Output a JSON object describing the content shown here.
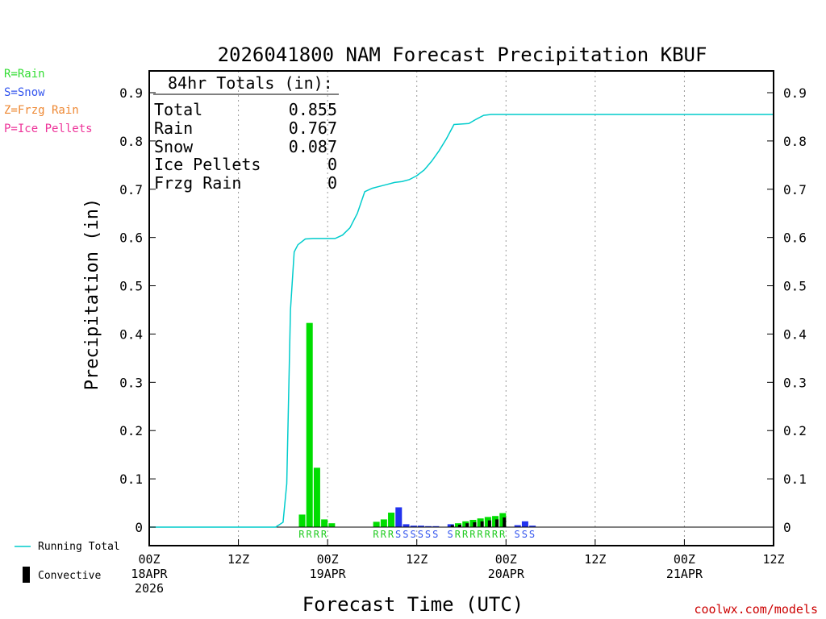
{
  "title": "2026041800 NAM Forecast Precipitation KBUF",
  "legend_types": [
    {
      "label": "R=Rain",
      "color": "#33dd33"
    },
    {
      "label": "S=Snow",
      "color": "#3355ee"
    },
    {
      "label": "Z=Frzg Rain",
      "color": "#ee8833"
    },
    {
      "label": "P=Ice Pellets",
      "color": "#ee3399"
    }
  ],
  "legend_lines": {
    "running_total": "Running Total",
    "convective": "Convective"
  },
  "totals_box": {
    "header": "84hr Totals (in):",
    "rows": [
      {
        "label": "Total",
        "value": "0.855"
      },
      {
        "label": "Rain",
        "value": "0.767"
      },
      {
        "label": "Snow",
        "value": "0.087"
      },
      {
        "label": "Ice Pellets",
        "value": "0"
      },
      {
        "label": "Frzg Rain",
        "value": "0"
      }
    ]
  },
  "credit": "coolwx.com/models",
  "colors": {
    "rain": "#00dd00",
    "snow": "#2233ee",
    "running_total": "#00cccc",
    "convective": "#000000",
    "rain_text": "#22cc22",
    "snow_text": "#3355ee",
    "credit": "#cc0000"
  },
  "chart_data": {
    "type": "bar",
    "ylabel": "Precipitation (in)",
    "xlabel": "Forecast Time (UTC)",
    "ylim": [
      0,
      0.9
    ],
    "yticks": [
      0,
      0.1,
      0.2,
      0.3,
      0.4,
      0.5,
      0.6,
      0.7,
      0.8,
      0.9
    ],
    "xlim_hours": [
      0,
      84
    ],
    "xticks": [
      {
        "hour": 0,
        "label": [
          "00Z",
          "18APR",
          "2026"
        ]
      },
      {
        "hour": 12,
        "label": [
          "12Z"
        ]
      },
      {
        "hour": 24,
        "label": [
          "00Z",
          "19APR"
        ]
      },
      {
        "hour": 36,
        "label": [
          "12Z"
        ]
      },
      {
        "hour": 48,
        "label": [
          "00Z",
          "20APR"
        ]
      },
      {
        "hour": 60,
        "label": [
          "12Z"
        ]
      },
      {
        "hour": 72,
        "label": [
          "00Z",
          "21APR"
        ]
      },
      {
        "hour": 84,
        "label": [
          "12Z"
        ]
      }
    ],
    "grid_x": "dotted",
    "bars": [
      {
        "hour": 21,
        "value": 0.026,
        "type": "R",
        "convective": 0
      },
      {
        "hour": 22,
        "value": 0.423,
        "type": "R",
        "convective": 0
      },
      {
        "hour": 23,
        "value": 0.123,
        "type": "R",
        "convective": 0
      },
      {
        "hour": 24,
        "value": 0.016,
        "type": "R",
        "convective": 0
      },
      {
        "hour": 25,
        "value": 0.008,
        "type": "R",
        "convective": 0
      },
      {
        "hour": 31,
        "value": 0.011,
        "type": "R",
        "convective": 0
      },
      {
        "hour": 32,
        "value": 0.016,
        "type": "R",
        "convective": 0
      },
      {
        "hour": 33,
        "value": 0.03,
        "type": "R",
        "convective": 0
      },
      {
        "hour": 34,
        "value": 0.041,
        "type": "S",
        "convective": 0
      },
      {
        "hour": 35,
        "value": 0.006,
        "type": "S",
        "convective": 0
      },
      {
        "hour": 36,
        "value": 0.003,
        "type": "S",
        "convective": 0
      },
      {
        "hour": 37,
        "value": 0.003,
        "type": "S",
        "convective": 0
      },
      {
        "hour": 38,
        "value": 0.002,
        "type": "S",
        "convective": 0
      },
      {
        "hour": 39,
        "value": 0.002,
        "type": "S",
        "convective": 0
      },
      {
        "hour": 41,
        "value": 0.006,
        "type": "S",
        "convective": 0.004
      },
      {
        "hour": 42,
        "value": 0.008,
        "type": "R",
        "convective": 0.005
      },
      {
        "hour": 43,
        "value": 0.012,
        "type": "R",
        "convective": 0.008
      },
      {
        "hour": 44,
        "value": 0.015,
        "type": "R",
        "convective": 0.01
      },
      {
        "hour": 45,
        "value": 0.018,
        "type": "R",
        "convective": 0.012
      },
      {
        "hour": 46,
        "value": 0.021,
        "type": "R",
        "convective": 0.014
      },
      {
        "hour": 47,
        "value": 0.023,
        "type": "R",
        "convective": 0.016
      },
      {
        "hour": 48,
        "value": 0.029,
        "type": "R",
        "convective": 0.02
      },
      {
        "hour": 50,
        "value": 0.004,
        "type": "S",
        "convective": 0
      },
      {
        "hour": 51,
        "value": 0.012,
        "type": "S",
        "convective": 0
      },
      {
        "hour": 52,
        "value": 0.003,
        "type": "S",
        "convective": 0
      }
    ],
    "type_labels": [
      {
        "hour": 21,
        "text": "R",
        "type": "R"
      },
      {
        "hour": 22,
        "text": "R",
        "type": "R"
      },
      {
        "hour": 23,
        "text": "R",
        "type": "R"
      },
      {
        "hour": 24,
        "text": "R",
        "type": "R"
      },
      {
        "hour": 31,
        "text": "R",
        "type": "R"
      },
      {
        "hour": 32,
        "text": "R",
        "type": "R"
      },
      {
        "hour": 33,
        "text": "R",
        "type": "R"
      },
      {
        "hour": 34,
        "text": "S",
        "type": "S"
      },
      {
        "hour": 35,
        "text": "S",
        "type": "S"
      },
      {
        "hour": 36,
        "text": "S",
        "type": "S"
      },
      {
        "hour": 37,
        "text": "S",
        "type": "S"
      },
      {
        "hour": 38,
        "text": "S",
        "type": "S"
      },
      {
        "hour": 39,
        "text": "S",
        "type": "S"
      },
      {
        "hour": 41,
        "text": "S",
        "type": "S"
      },
      {
        "hour": 42,
        "text": "R",
        "type": "R"
      },
      {
        "hour": 43,
        "text": "R",
        "type": "R"
      },
      {
        "hour": 44,
        "text": "R",
        "type": "R"
      },
      {
        "hour": 45,
        "text": "R",
        "type": "R"
      },
      {
        "hour": 46,
        "text": "R",
        "type": "R"
      },
      {
        "hour": 47,
        "text": "R",
        "type": "R"
      },
      {
        "hour": 48,
        "text": "R",
        "type": "R"
      },
      {
        "hour": 50,
        "text": "S",
        "type": "S"
      },
      {
        "hour": 51,
        "text": "S",
        "type": "S"
      },
      {
        "hour": 52,
        "text": "S",
        "type": "S"
      }
    ],
    "running_total": [
      [
        0,
        0
      ],
      [
        16,
        0
      ],
      [
        17,
        0
      ],
      [
        17.5,
        0.005
      ],
      [
        18,
        0.01
      ],
      [
        18.5,
        0.09
      ],
      [
        19,
        0.45
      ],
      [
        19.5,
        0.57
      ],
      [
        20,
        0.585
      ],
      [
        21,
        0.597
      ],
      [
        22,
        0.598
      ],
      [
        23,
        0.598
      ],
      [
        24,
        0.598
      ],
      [
        25,
        0.598
      ],
      [
        26,
        0.605
      ],
      [
        27,
        0.62
      ],
      [
        28,
        0.65
      ],
      [
        29,
        0.695
      ],
      [
        30,
        0.702
      ],
      [
        31,
        0.706
      ],
      [
        32,
        0.71
      ],
      [
        33,
        0.714
      ],
      [
        34,
        0.716
      ],
      [
        35,
        0.72
      ],
      [
        36,
        0.728
      ],
      [
        37,
        0.74
      ],
      [
        38,
        0.758
      ],
      [
        39,
        0.78
      ],
      [
        40,
        0.805
      ],
      [
        41,
        0.834
      ],
      [
        42,
        0.835
      ],
      [
        43,
        0.836
      ],
      [
        44,
        0.845
      ],
      [
        45,
        0.853
      ],
      [
        46,
        0.855
      ],
      [
        84,
        0.855
      ]
    ]
  }
}
